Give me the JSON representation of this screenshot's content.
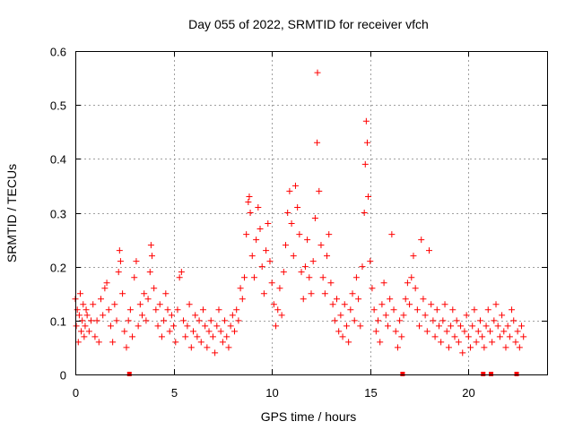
{
  "chart_data": {
    "type": "scatter",
    "title": "Day 055 of 2022, SRMTID for receiver vfch",
    "xlabel": "GPS time / hours",
    "ylabel": "SRMTID / TECUs",
    "xlim": [
      0,
      24
    ],
    "ylim": [
      0,
      0.6
    ],
    "x_ticks": [
      0,
      5,
      10,
      15,
      20
    ],
    "y_ticks": [
      0,
      0.1,
      0.2,
      0.3,
      0.4,
      0.5,
      0.6
    ],
    "x_tick_labels": [
      "0",
      "5",
      "10",
      "15",
      "20"
    ],
    "y_tick_labels": [
      "0",
      "0.1",
      "0.2",
      "0.3",
      "0.4",
      "0.5",
      "0.6"
    ],
    "grid": true,
    "marker": "plus",
    "color": "#ff0000",
    "series": [
      {
        "name": "SRMTID",
        "points": [
          [
            0.0,
            0.14
          ],
          [
            0.05,
            0.09
          ],
          [
            0.1,
            0.12
          ],
          [
            0.15,
            0.06
          ],
          [
            0.2,
            0.11
          ],
          [
            0.25,
            0.15
          ],
          [
            0.3,
            0.08
          ],
          [
            0.35,
            0.1
          ],
          [
            0.4,
            0.13
          ],
          [
            0.45,
            0.07
          ],
          [
            0.5,
            0.09
          ],
          [
            0.55,
            0.12
          ],
          [
            0.6,
            0.11
          ],
          [
            0.7,
            0.08
          ],
          [
            0.8,
            0.1
          ],
          [
            0.9,
            0.13
          ],
          [
            1.0,
            0.07
          ],
          [
            1.1,
            0.1
          ],
          [
            1.2,
            0.06
          ],
          [
            1.3,
            0.14
          ],
          [
            1.4,
            0.11
          ],
          [
            1.5,
            0.16
          ],
          [
            1.6,
            0.17
          ],
          [
            1.7,
            0.12
          ],
          [
            1.8,
            0.09
          ],
          [
            1.9,
            0.06
          ],
          [
            2.0,
            0.13
          ],
          [
            2.1,
            0.1
          ],
          [
            2.2,
            0.19
          ],
          [
            2.25,
            0.23
          ],
          [
            2.3,
            0.21
          ],
          [
            2.4,
            0.15
          ],
          [
            2.5,
            0.08
          ],
          [
            2.6,
            0.05
          ],
          [
            2.7,
            0.1
          ],
          [
            2.8,
            0.12
          ],
          [
            2.9,
            0.07
          ],
          [
            3.0,
            0.18
          ],
          [
            3.1,
            0.21
          ],
          [
            3.2,
            0.09
          ],
          [
            3.3,
            0.13
          ],
          [
            3.4,
            0.11
          ],
          [
            3.5,
            0.15
          ],
          [
            3.6,
            0.1
          ],
          [
            3.7,
            0.14
          ],
          [
            3.8,
            0.19
          ],
          [
            3.85,
            0.24
          ],
          [
            3.9,
            0.22
          ],
          [
            4.0,
            0.16
          ],
          [
            4.1,
            0.12
          ],
          [
            4.2,
            0.09
          ],
          [
            4.3,
            0.13
          ],
          [
            4.4,
            0.07
          ],
          [
            4.5,
            0.1
          ],
          [
            4.6,
            0.15
          ],
          [
            4.7,
            0.12
          ],
          [
            4.8,
            0.08
          ],
          [
            4.9,
            0.11
          ],
          [
            5.0,
            0.09
          ],
          [
            5.1,
            0.06
          ],
          [
            5.2,
            0.12
          ],
          [
            5.3,
            0.18
          ],
          [
            5.4,
            0.19
          ],
          [
            5.5,
            0.1
          ],
          [
            5.6,
            0.07
          ],
          [
            5.7,
            0.09
          ],
          [
            5.8,
            0.13
          ],
          [
            5.9,
            0.05
          ],
          [
            6.0,
            0.08
          ],
          [
            6.1,
            0.11
          ],
          [
            6.2,
            0.07
          ],
          [
            6.3,
            0.1
          ],
          [
            6.4,
            0.06
          ],
          [
            6.5,
            0.12
          ],
          [
            6.6,
            0.09
          ],
          [
            6.7,
            0.05
          ],
          [
            6.8,
            0.08
          ],
          [
            6.9,
            0.1
          ],
          [
            7.0,
            0.07
          ],
          [
            7.1,
            0.04
          ],
          [
            7.2,
            0.09
          ],
          [
            7.3,
            0.12
          ],
          [
            7.4,
            0.08
          ],
          [
            7.5,
            0.06
          ],
          [
            7.6,
            0.1
          ],
          [
            7.7,
            0.07
          ],
          [
            7.8,
            0.05
          ],
          [
            7.9,
            0.09
          ],
          [
            8.0,
            0.11
          ],
          [
            8.1,
            0.08
          ],
          [
            8.2,
            0.12
          ],
          [
            8.3,
            0.1
          ],
          [
            8.4,
            0.16
          ],
          [
            8.5,
            0.14
          ],
          [
            8.6,
            0.18
          ],
          [
            8.7,
            0.26
          ],
          [
            8.8,
            0.32
          ],
          [
            8.85,
            0.33
          ],
          [
            8.9,
            0.3
          ],
          [
            9.0,
            0.22
          ],
          [
            9.1,
            0.18
          ],
          [
            9.2,
            0.25
          ],
          [
            9.3,
            0.31
          ],
          [
            9.4,
            0.27
          ],
          [
            9.5,
            0.2
          ],
          [
            9.6,
            0.15
          ],
          [
            9.7,
            0.23
          ],
          [
            9.8,
            0.28
          ],
          [
            9.9,
            0.21
          ],
          [
            10.0,
            0.17
          ],
          [
            10.1,
            0.13
          ],
          [
            10.2,
            0.09
          ],
          [
            10.3,
            0.12
          ],
          [
            10.4,
            0.16
          ],
          [
            10.5,
            0.11
          ],
          [
            10.6,
            0.19
          ],
          [
            10.7,
            0.24
          ],
          [
            10.8,
            0.3
          ],
          [
            10.9,
            0.34
          ],
          [
            11.0,
            0.28
          ],
          [
            11.1,
            0.22
          ],
          [
            11.2,
            0.35
          ],
          [
            11.3,
            0.31
          ],
          [
            11.4,
            0.26
          ],
          [
            11.5,
            0.19
          ],
          [
            11.6,
            0.14
          ],
          [
            11.7,
            0.2
          ],
          [
            11.8,
            0.25
          ],
          [
            11.9,
            0.18
          ],
          [
            12.0,
            0.15
          ],
          [
            12.1,
            0.21
          ],
          [
            12.2,
            0.29
          ],
          [
            12.3,
            0.43
          ],
          [
            12.32,
            0.56
          ],
          [
            12.4,
            0.34
          ],
          [
            12.5,
            0.24
          ],
          [
            12.6,
            0.18
          ],
          [
            12.7,
            0.15
          ],
          [
            12.8,
            0.22
          ],
          [
            12.9,
            0.26
          ],
          [
            13.0,
            0.17
          ],
          [
            13.1,
            0.13
          ],
          [
            13.2,
            0.1
          ],
          [
            13.3,
            0.14
          ],
          [
            13.4,
            0.08
          ],
          [
            13.5,
            0.11
          ],
          [
            13.6,
            0.07
          ],
          [
            13.7,
            0.13
          ],
          [
            13.8,
            0.09
          ],
          [
            13.9,
            0.06
          ],
          [
            14.0,
            0.12
          ],
          [
            14.1,
            0.15
          ],
          [
            14.2,
            0.1
          ],
          [
            14.3,
            0.18
          ],
          [
            14.4,
            0.14
          ],
          [
            14.5,
            0.09
          ],
          [
            14.6,
            0.2
          ],
          [
            14.7,
            0.3
          ],
          [
            14.75,
            0.39
          ],
          [
            14.8,
            0.47
          ],
          [
            14.85,
            0.43
          ],
          [
            14.9,
            0.33
          ],
          [
            15.0,
            0.21
          ],
          [
            15.1,
            0.16
          ],
          [
            15.2,
            0.12
          ],
          [
            15.3,
            0.08
          ],
          [
            15.4,
            0.1
          ],
          [
            15.5,
            0.06
          ],
          [
            15.6,
            0.13
          ],
          [
            15.7,
            0.17
          ],
          [
            15.8,
            0.11
          ],
          [
            15.9,
            0.09
          ],
          [
            16.0,
            0.14
          ],
          [
            16.1,
            0.26
          ],
          [
            16.2,
            0.12
          ],
          [
            16.3,
            0.08
          ],
          [
            16.4,
            0.05
          ],
          [
            16.5,
            0.1
          ],
          [
            16.6,
            0.07
          ],
          [
            16.7,
            0.11
          ],
          [
            16.8,
            0.14
          ],
          [
            16.9,
            0.17
          ],
          [
            17.0,
            0.13
          ],
          [
            17.1,
            0.18
          ],
          [
            17.2,
            0.22
          ],
          [
            17.3,
            0.16
          ],
          [
            17.4,
            0.12
          ],
          [
            17.5,
            0.09
          ],
          [
            17.6,
            0.25
          ],
          [
            17.7,
            0.14
          ],
          [
            17.8,
            0.11
          ],
          [
            17.9,
            0.08
          ],
          [
            18.0,
            0.23
          ],
          [
            18.1,
            0.13
          ],
          [
            18.2,
            0.1
          ],
          [
            18.3,
            0.07
          ],
          [
            18.4,
            0.12
          ],
          [
            18.5,
            0.09
          ],
          [
            18.6,
            0.06
          ],
          [
            18.7,
            0.1
          ],
          [
            18.8,
            0.13
          ],
          [
            18.9,
            0.08
          ],
          [
            19.0,
            0.05
          ],
          [
            19.1,
            0.09
          ],
          [
            19.2,
            0.12
          ],
          [
            19.3,
            0.07
          ],
          [
            19.4,
            0.1
          ],
          [
            19.5,
            0.06
          ],
          [
            19.6,
            0.09
          ],
          [
            19.7,
            0.04
          ],
          [
            19.8,
            0.08
          ],
          [
            19.9,
            0.11
          ],
          [
            20.0,
            0.07
          ],
          [
            20.1,
            0.05
          ],
          [
            20.2,
            0.09
          ],
          [
            20.3,
            0.12
          ],
          [
            20.4,
            0.06
          ],
          [
            20.5,
            0.08
          ],
          [
            20.6,
            0.1
          ],
          [
            20.7,
            0.07
          ],
          [
            20.8,
            0.05
          ],
          [
            20.9,
            0.09
          ],
          [
            21.0,
            0.12
          ],
          [
            21.1,
            0.08
          ],
          [
            21.2,
            0.06
          ],
          [
            21.3,
            0.1
          ],
          [
            21.4,
            0.13
          ],
          [
            21.5,
            0.09
          ],
          [
            21.6,
            0.07
          ],
          [
            21.7,
            0.11
          ],
          [
            21.8,
            0.08
          ],
          [
            21.9,
            0.05
          ],
          [
            22.0,
            0.09
          ],
          [
            22.1,
            0.07
          ],
          [
            22.2,
            0.12
          ],
          [
            22.3,
            0.1
          ],
          [
            22.4,
            0.06
          ],
          [
            22.5,
            0.08
          ],
          [
            22.6,
            0.05
          ],
          [
            22.7,
            0.09
          ],
          [
            22.8,
            0.07
          ]
        ]
      }
    ],
    "baseline_markers_x": [
      2.75,
      16.65,
      20.75,
      21.15,
      22.45
    ]
  }
}
